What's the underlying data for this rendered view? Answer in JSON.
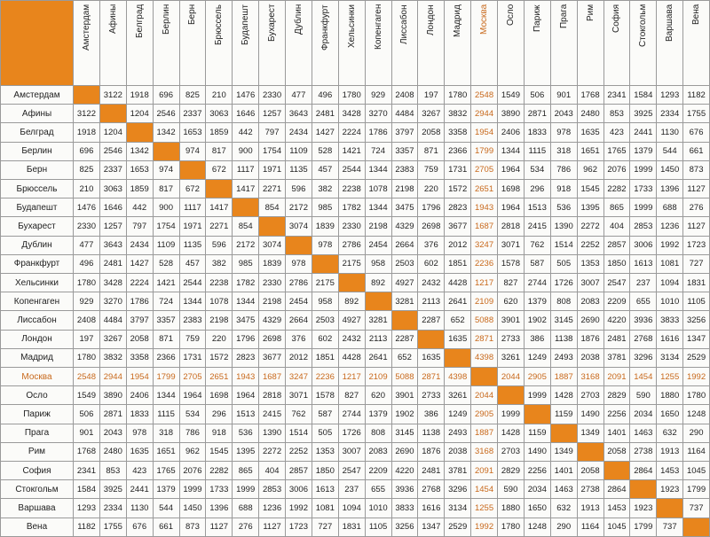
{
  "table": {
    "headers": [
      "Амстердам",
      "Афины",
      "Белград",
      "Берлин",
      "Берн",
      "Брюссель",
      "Будапешт",
      "Бухарест",
      "Дублин",
      "Франкфурт",
      "Хельсинки",
      "Копенгаген",
      "Лиссабон",
      "Лондон",
      "Мадрид",
      "Москва",
      "Осло",
      "Париж",
      "Прага",
      "Рим",
      "София",
      "Стокгольм",
      "Варшава",
      "Вена"
    ],
    "highlight_index": 15,
    "highlight_color": "#c8691c",
    "diagonal_color": "#e8851c",
    "rows": [
      {
        "label": "Амстердам",
        "cells": [
          null,
          3122,
          1918,
          696,
          825,
          210,
          1476,
          2330,
          477,
          496,
          1780,
          929,
          2408,
          197,
          1780,
          2548,
          1549,
          506,
          901,
          1768,
          2341,
          1584,
          1293,
          1182
        ]
      },
      {
        "label": "Афины",
        "cells": [
          3122,
          null,
          1204,
          2546,
          2337,
          3063,
          1646,
          1257,
          3643,
          2481,
          3428,
          3270,
          4484,
          3267,
          3832,
          2944,
          3890,
          2871,
          2043,
          2480,
          853,
          3925,
          2334,
          1755
        ]
      },
      {
        "label": "Белград",
        "cells": [
          1918,
          1204,
          null,
          1342,
          1653,
          1859,
          442,
          797,
          2434,
          1427,
          2224,
          1786,
          3797,
          2058,
          3358,
          1954,
          2406,
          1833,
          978,
          1635,
          423,
          2441,
          1130,
          676
        ]
      },
      {
        "label": "Берлин",
        "cells": [
          696,
          2546,
          1342,
          null,
          974,
          817,
          900,
          1754,
          1109,
          528,
          1421,
          724,
          3357,
          871,
          2366,
          1799,
          1344,
          1115,
          318,
          1651,
          1765,
          1379,
          544,
          661
        ]
      },
      {
        "label": "Берн",
        "cells": [
          825,
          2337,
          1653,
          974,
          null,
          672,
          1117,
          1971,
          1135,
          457,
          2544,
          1344,
          2383,
          759,
          1731,
          2705,
          1964,
          534,
          786,
          962,
          2076,
          1999,
          1450,
          873
        ]
      },
      {
        "label": "Брюссель",
        "cells": [
          210,
          3063,
          1859,
          817,
          672,
          null,
          1417,
          2271,
          596,
          382,
          2238,
          1078,
          2198,
          220,
          1572,
          2651,
          1698,
          296,
          918,
          1545,
          2282,
          1733,
          1396,
          1127
        ]
      },
      {
        "label": "Будапешт",
        "cells": [
          1476,
          1646,
          442,
          900,
          1117,
          1417,
          null,
          854,
          2172,
          985,
          1782,
          1344,
          3475,
          1796,
          2823,
          1943,
          1964,
          1513,
          536,
          1395,
          865,
          1999,
          688,
          276
        ]
      },
      {
        "label": "Бухарест",
        "cells": [
          2330,
          1257,
          797,
          1754,
          1971,
          2271,
          854,
          null,
          3074,
          1839,
          2330,
          2198,
          4329,
          2698,
          3677,
          1687,
          2818,
          2415,
          1390,
          2272,
          404,
          2853,
          1236,
          1127
        ]
      },
      {
        "label": "Дублин",
        "cells": [
          477,
          3643,
          2434,
          1109,
          1135,
          596,
          2172,
          3074,
          null,
          978,
          2786,
          2454,
          2664,
          376,
          2012,
          3247,
          3071,
          762,
          1514,
          2252,
          2857,
          3006,
          1992,
          1723
        ]
      },
      {
        "label": "Франкфурт",
        "cells": [
          496,
          2481,
          1427,
          528,
          457,
          382,
          985,
          1839,
          978,
          null,
          2175,
          958,
          2503,
          602,
          1851,
          2236,
          1578,
          587,
          505,
          1353,
          1850,
          1613,
          1081,
          727
        ]
      },
      {
        "label": "Хельсинки",
        "cells": [
          1780,
          3428,
          2224,
          1421,
          2544,
          2238,
          1782,
          2330,
          2786,
          2175,
          null,
          892,
          4927,
          2432,
          4428,
          1217,
          827,
          2744,
          1726,
          3007,
          2547,
          237,
          1094,
          1831
        ]
      },
      {
        "label": "Копенгаген",
        "cells": [
          929,
          3270,
          1786,
          724,
          1344,
          1078,
          1344,
          2198,
          2454,
          958,
          892,
          null,
          3281,
          2113,
          2641,
          2109,
          620,
          1379,
          808,
          2083,
          2209,
          655,
          1010,
          1105
        ]
      },
      {
        "label": "Лиссабон",
        "cells": [
          2408,
          4484,
          3797,
          3357,
          2383,
          2198,
          3475,
          4329,
          2664,
          2503,
          4927,
          3281,
          null,
          2287,
          652,
          5088,
          3901,
          1902,
          3145,
          2690,
          4220,
          3936,
          3833,
          3256
        ]
      },
      {
        "label": "Лондон",
        "cells": [
          197,
          3267,
          2058,
          871,
          759,
          220,
          1796,
          2698,
          376,
          602,
          2432,
          2113,
          2287,
          null,
          1635,
          2871,
          2733,
          386,
          1138,
          1876,
          2481,
          2768,
          1616,
          1347
        ]
      },
      {
        "label": "Мадрид",
        "cells": [
          1780,
          3832,
          3358,
          2366,
          1731,
          1572,
          2823,
          3677,
          2012,
          1851,
          4428,
          2641,
          652,
          1635,
          null,
          4398,
          3261,
          1249,
          2493,
          2038,
          3781,
          3296,
          3134,
          2529
        ]
      },
      {
        "label": "Москва",
        "cells": [
          2548,
          2944,
          1954,
          1799,
          2705,
          2651,
          1943,
          1687,
          3247,
          2236,
          1217,
          2109,
          5088,
          2871,
          4398,
          null,
          2044,
          2905,
          1887,
          3168,
          2091,
          1454,
          1255,
          1992
        ]
      },
      {
        "label": "Осло",
        "cells": [
          1549,
          3890,
          2406,
          1344,
          1964,
          1698,
          1964,
          2818,
          3071,
          1578,
          827,
          620,
          3901,
          2733,
          3261,
          2044,
          null,
          1999,
          1428,
          2703,
          2829,
          590,
          1880,
          1780
        ]
      },
      {
        "label": "Париж",
        "cells": [
          506,
          2871,
          1833,
          1115,
          534,
          296,
          1513,
          2415,
          762,
          587,
          2744,
          1379,
          1902,
          386,
          1249,
          2905,
          1999,
          null,
          1159,
          1490,
          2256,
          2034,
          1650,
          1248
        ]
      },
      {
        "label": "Прага",
        "cells": [
          901,
          2043,
          978,
          318,
          786,
          918,
          536,
          1390,
          1514,
          505,
          1726,
          808,
          3145,
          1138,
          2493,
          1887,
          1428,
          1159,
          null,
          1349,
          1401,
          1463,
          632,
          290
        ]
      },
      {
        "label": "Рим",
        "cells": [
          1768,
          2480,
          1635,
          1651,
          962,
          1545,
          1395,
          2272,
          2252,
          1353,
          3007,
          2083,
          2690,
          1876,
          2038,
          3168,
          2703,
          1490,
          1349,
          null,
          2058,
          2738,
          1913,
          1164
        ]
      },
      {
        "label": "София",
        "cells": [
          2341,
          853,
          423,
          1765,
          2076,
          2282,
          865,
          404,
          2857,
          1850,
          2547,
          2209,
          4220,
          2481,
          3781,
          2091,
          2829,
          2256,
          1401,
          2058,
          null,
          2864,
          1453,
          1045
        ]
      },
      {
        "label": "Стокгольм",
        "cells": [
          1584,
          3925,
          2441,
          1379,
          1999,
          1733,
          1999,
          2853,
          3006,
          1613,
          237,
          655,
          3936,
          2768,
          3296,
          1454,
          590,
          2034,
          1463,
          2738,
          2864,
          null,
          1923,
          1799
        ]
      },
      {
        "label": "Варшава",
        "cells": [
          1293,
          2334,
          1130,
          544,
          1450,
          1396,
          688,
          1236,
          1992,
          1081,
          1094,
          1010,
          3833,
          1616,
          3134,
          1255,
          1880,
          1650,
          632,
          1913,
          1453,
          1923,
          null,
          737
        ]
      },
      {
        "label": "Вена",
        "cells": [
          1182,
          1755,
          676,
          661,
          873,
          1127,
          276,
          1127,
          1723,
          727,
          1831,
          1105,
          3256,
          1347,
          2529,
          1992,
          1780,
          1248,
          290,
          1164,
          1045,
          1799,
          737,
          null
        ]
      }
    ]
  }
}
